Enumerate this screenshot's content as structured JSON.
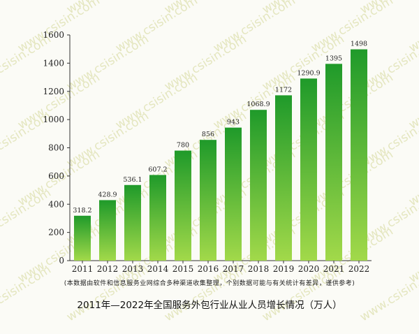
{
  "watermark": "www.csisin.com",
  "note": "(本数据由软件和信息服务业网综合多种渠道收集整理，个别数据可能与有关统计有差异，谨供参考)",
  "caption": "2011年—2022年全国服务外包行业从业人员增长情况（万人）",
  "colors": {
    "bar_top": "#1f9a2a",
    "bar_bottom": "#a2d94a",
    "axis": "#333333",
    "watermark": "#e4e6bf"
  },
  "chart_data": {
    "type": "bar",
    "categories": [
      "2011",
      "2012",
      "2013",
      "2014",
      "2015",
      "2016",
      "2017",
      "2018",
      "2019",
      "2020",
      "2021",
      "2022"
    ],
    "values": [
      318.2,
      428.9,
      536.1,
      607.2,
      780,
      856,
      943,
      1068.9,
      1172,
      1290.9,
      1395,
      1498
    ],
    "labels": [
      "318.2",
      "428.9",
      "536.1",
      "607.2",
      "780",
      "856",
      "943",
      "1068.9",
      "1172",
      "1290.9",
      "1395",
      "1498"
    ],
    "ylim": [
      0,
      1600
    ],
    "yticks": [
      0,
      200,
      400,
      600,
      800,
      1000,
      1200,
      1400,
      1600
    ],
    "grid": false,
    "legend": "none"
  }
}
